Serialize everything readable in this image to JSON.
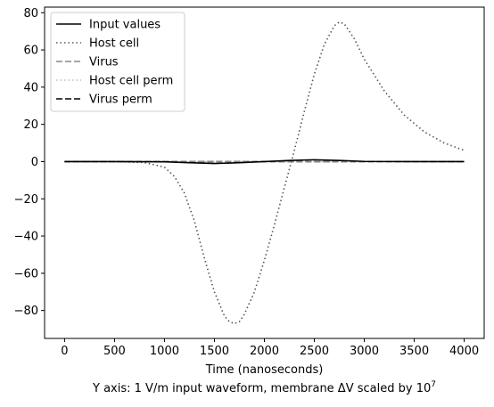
{
  "chart_data": {
    "type": "line",
    "title": "",
    "xlabel": "Time (nanoseconds)",
    "ylabel": "",
    "footnote": "Y axis: 1 V/m input waveform, membrane ΔV scaled by 10",
    "footnote_superscript": "7",
    "xlim": [
      -200,
      4200
    ],
    "ylim": [
      -95,
      83
    ],
    "xticks": [
      0,
      500,
      1000,
      1500,
      2000,
      2500,
      3000,
      3500,
      4000
    ],
    "yticks": [
      -80,
      -60,
      -40,
      -20,
      0,
      20,
      40,
      60,
      80
    ],
    "xtick_labels": [
      "0",
      "500",
      "1000",
      "1500",
      "2000",
      "2500",
      "3000",
      "3500",
      "4000"
    ],
    "ytick_labels": [
      "−80",
      "−60",
      "−40",
      "−20",
      "0",
      "20",
      "40",
      "60",
      "80"
    ],
    "grid": false,
    "legend_position": "top-left",
    "series": [
      {
        "name": "Input values",
        "color": "#000000",
        "dash": "solid",
        "x": [
          0,
          500,
          1000,
          1250,
          1500,
          1750,
          2000,
          2250,
          2500,
          2750,
          3000,
          3500,
          4000
        ],
        "y": [
          0,
          0,
          -0.1,
          -0.6,
          -1.0,
          -0.6,
          0,
          0.6,
          1.0,
          0.6,
          0.1,
          0,
          0
        ]
      },
      {
        "name": "Host cell",
        "color": "#555555",
        "dash": "dotted",
        "x": [
          0,
          500,
          800,
          1000,
          1100,
          1200,
          1300,
          1400,
          1500,
          1600,
          1650,
          1700,
          1750,
          1800,
          1900,
          2000,
          2100,
          2200,
          2300,
          2400,
          2500,
          2600,
          2700,
          2750,
          2800,
          2900,
          3000,
          3200,
          3400,
          3600,
          3800,
          4000
        ],
        "y": [
          0,
          0,
          -0.5,
          -3,
          -8,
          -17,
          -32,
          -52,
          -70,
          -83,
          -86,
          -87,
          -86,
          -82,
          -70,
          -53,
          -34,
          -14,
          6,
          27,
          47,
          63,
          73,
          75,
          74,
          66,
          55,
          38,
          25,
          16,
          10,
          6
        ]
      },
      {
        "name": "Virus",
        "color": "#888888",
        "dash": "dashed",
        "x": [
          0,
          4000
        ],
        "y": [
          0,
          0
        ]
      },
      {
        "name": "Host cell perm",
        "color": "#bbbbbb",
        "dash": "dotted",
        "x": [
          0,
          4000
        ],
        "y": [
          0,
          0
        ]
      },
      {
        "name": "Virus perm",
        "color": "#000000",
        "dash": "dashed",
        "x": [
          0,
          4000
        ],
        "y": [
          0,
          0
        ]
      }
    ]
  }
}
